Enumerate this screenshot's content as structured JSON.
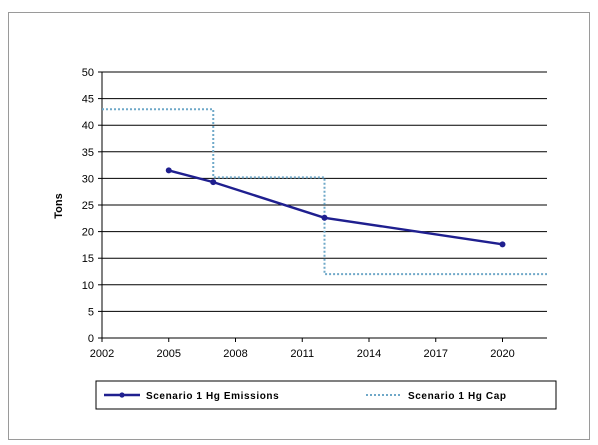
{
  "chart_data": {
    "type": "line",
    "title": "",
    "xlabel": "",
    "ylabel": "Tons",
    "xlim": [
      2002,
      2022
    ],
    "ylim": [
      0,
      50
    ],
    "x_ticks": [
      2002,
      2005,
      2008,
      2011,
      2014,
      2017,
      2020
    ],
    "y_ticks": [
      0,
      5,
      10,
      15,
      20,
      25,
      30,
      35,
      40,
      45,
      50
    ],
    "grid": "horizontal",
    "legend_position": "bottom",
    "series": [
      {
        "name": "Scenario 1 Hg Emissions",
        "style": "solid-with-markers",
        "color": "#1f1f8f",
        "x": [
          2005,
          2007,
          2012,
          2020
        ],
        "y": [
          31.5,
          29.3,
          22.6,
          17.6
        ]
      },
      {
        "name": "Scenario 1 Hg Cap",
        "style": "dotted-step",
        "color": "#6fa8c8",
        "x": [
          2002,
          2007,
          2007,
          2012,
          2012,
          2022
        ],
        "y": [
          43,
          43,
          30.2,
          30.2,
          12,
          12
        ]
      }
    ]
  }
}
